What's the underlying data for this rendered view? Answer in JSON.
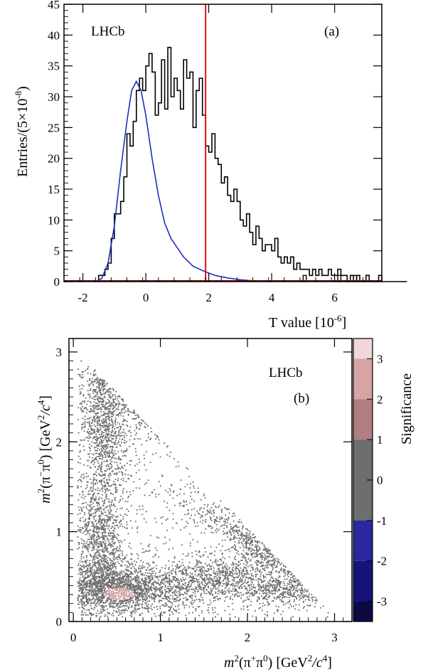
{
  "chart_data": [
    {
      "type": "bar",
      "panel_label": "(a)",
      "experiment": "LHCb",
      "xlabel": "T value [10",
      "xlabel_exp": "-6",
      "xlabel_close": "]",
      "ylabel": "Entries/(5×10",
      "ylabel_exp": "-8",
      "ylabel_close": ")",
      "xlim": [
        -2.6,
        7.5
      ],
      "ylim": [
        0,
        45
      ],
      "xticks": [
        -2,
        0,
        2,
        4,
        6
      ],
      "yticks": [
        0,
        5,
        10,
        15,
        20,
        25,
        30,
        35,
        40,
        45
      ],
      "grid": false,
      "bin_width": 0.1,
      "bins_start": -1.5,
      "counts": [
        1,
        1,
        2,
        3,
        7,
        11,
        11,
        13,
        17,
        24,
        22,
        26,
        31,
        33,
        31,
        35,
        37,
        34,
        27,
        29,
        36,
        28,
        38,
        30,
        33,
        31,
        28,
        36,
        33,
        34,
        25,
        31,
        33,
        27,
        22,
        21,
        24,
        20,
        19,
        16,
        17,
        14,
        13,
        15,
        13,
        10,
        9,
        11,
        8,
        6,
        9,
        7,
        5,
        6,
        6,
        5,
        7,
        4,
        3,
        4,
        3,
        4,
        2,
        3,
        2,
        2,
        2,
        1,
        2,
        1,
        2,
        1,
        1,
        2,
        1,
        1,
        2,
        1,
        1,
        0,
        1,
        0,
        1,
        0,
        0,
        1,
        0,
        0,
        0,
        1,
        0,
        0,
        0,
        0,
        0,
        0,
        0,
        0
      ],
      "isolated_bins": [
        {
          "x": 5.0,
          "count": 1
        },
        {
          "x": 6.1,
          "count": 1
        },
        {
          "x": 6.6,
          "count": 1
        }
      ],
      "fit_curve": [
        [
          -1.6,
          0
        ],
        [
          -1.4,
          0.5
        ],
        [
          -1.2,
          3
        ],
        [
          -1.0,
          9
        ],
        [
          -0.8,
          18
        ],
        [
          -0.6,
          26
        ],
        [
          -0.45,
          31
        ],
        [
          -0.3,
          32.5
        ],
        [
          -0.15,
          31
        ],
        [
          0.0,
          27
        ],
        [
          0.2,
          20
        ],
        [
          0.4,
          14
        ],
        [
          0.6,
          9.5
        ],
        [
          0.8,
          7
        ],
        [
          1.0,
          5.5
        ],
        [
          1.2,
          4
        ],
        [
          1.5,
          2.5
        ],
        [
          1.8,
          1.8
        ],
        [
          2.2,
          1
        ],
        [
          2.6,
          0.6
        ],
        [
          3.0,
          0.3
        ],
        [
          3.5,
          0.1
        ],
        [
          4.0,
          0
        ]
      ],
      "threshold_x": 1.9
    },
    {
      "type": "scatter",
      "panel_label": "(b)",
      "experiment": "LHCb",
      "xlabel_parts": [
        "m",
        "2",
        "(π",
        "+",
        "π",
        "0",
        ") [GeV",
        "2",
        "/c",
        "4",
        "]"
      ],
      "ylabel_parts": [
        "m",
        "2",
        "(π",
        "−",
        "π",
        "0",
        ") [GeV",
        "2",
        "/c",
        "4",
        "]"
      ],
      "xlim": [
        -0.05,
        3.2
      ],
      "ylim": [
        0,
        3.15
      ],
      "xticks": [
        0,
        1,
        2,
        3
      ],
      "yticks": [
        0,
        1,
        2,
        3
      ],
      "point_color": "#6e6e6e",
      "highlight_region": {
        "label": "Significance ≈ 2–3",
        "color": "#d4a0a0",
        "center": [
          0.53,
          0.31
        ],
        "radii": [
          0.17,
          0.07
        ]
      },
      "colorbar": {
        "title": "Significance",
        "range": [
          -3.5,
          3.5
        ],
        "ticks": [
          -3,
          -2,
          -1,
          0,
          1,
          2,
          3
        ],
        "bands": [
          {
            "from": 3,
            "to": 3.5,
            "color": "#f2d6d8"
          },
          {
            "from": 2,
            "to": 3,
            "color": "#d7a4a6"
          },
          {
            "from": 1,
            "to": 2,
            "color": "#b07f81"
          },
          {
            "from": -1,
            "to": 1,
            "color": "#6e6e6e"
          },
          {
            "from": -2,
            "to": -1,
            "color": "#2a28a0"
          },
          {
            "from": -3,
            "to": -2,
            "color": "#16147a"
          },
          {
            "from": -3.5,
            "to": -3,
            "color": "#0a0a45"
          }
        ]
      }
    }
  ]
}
